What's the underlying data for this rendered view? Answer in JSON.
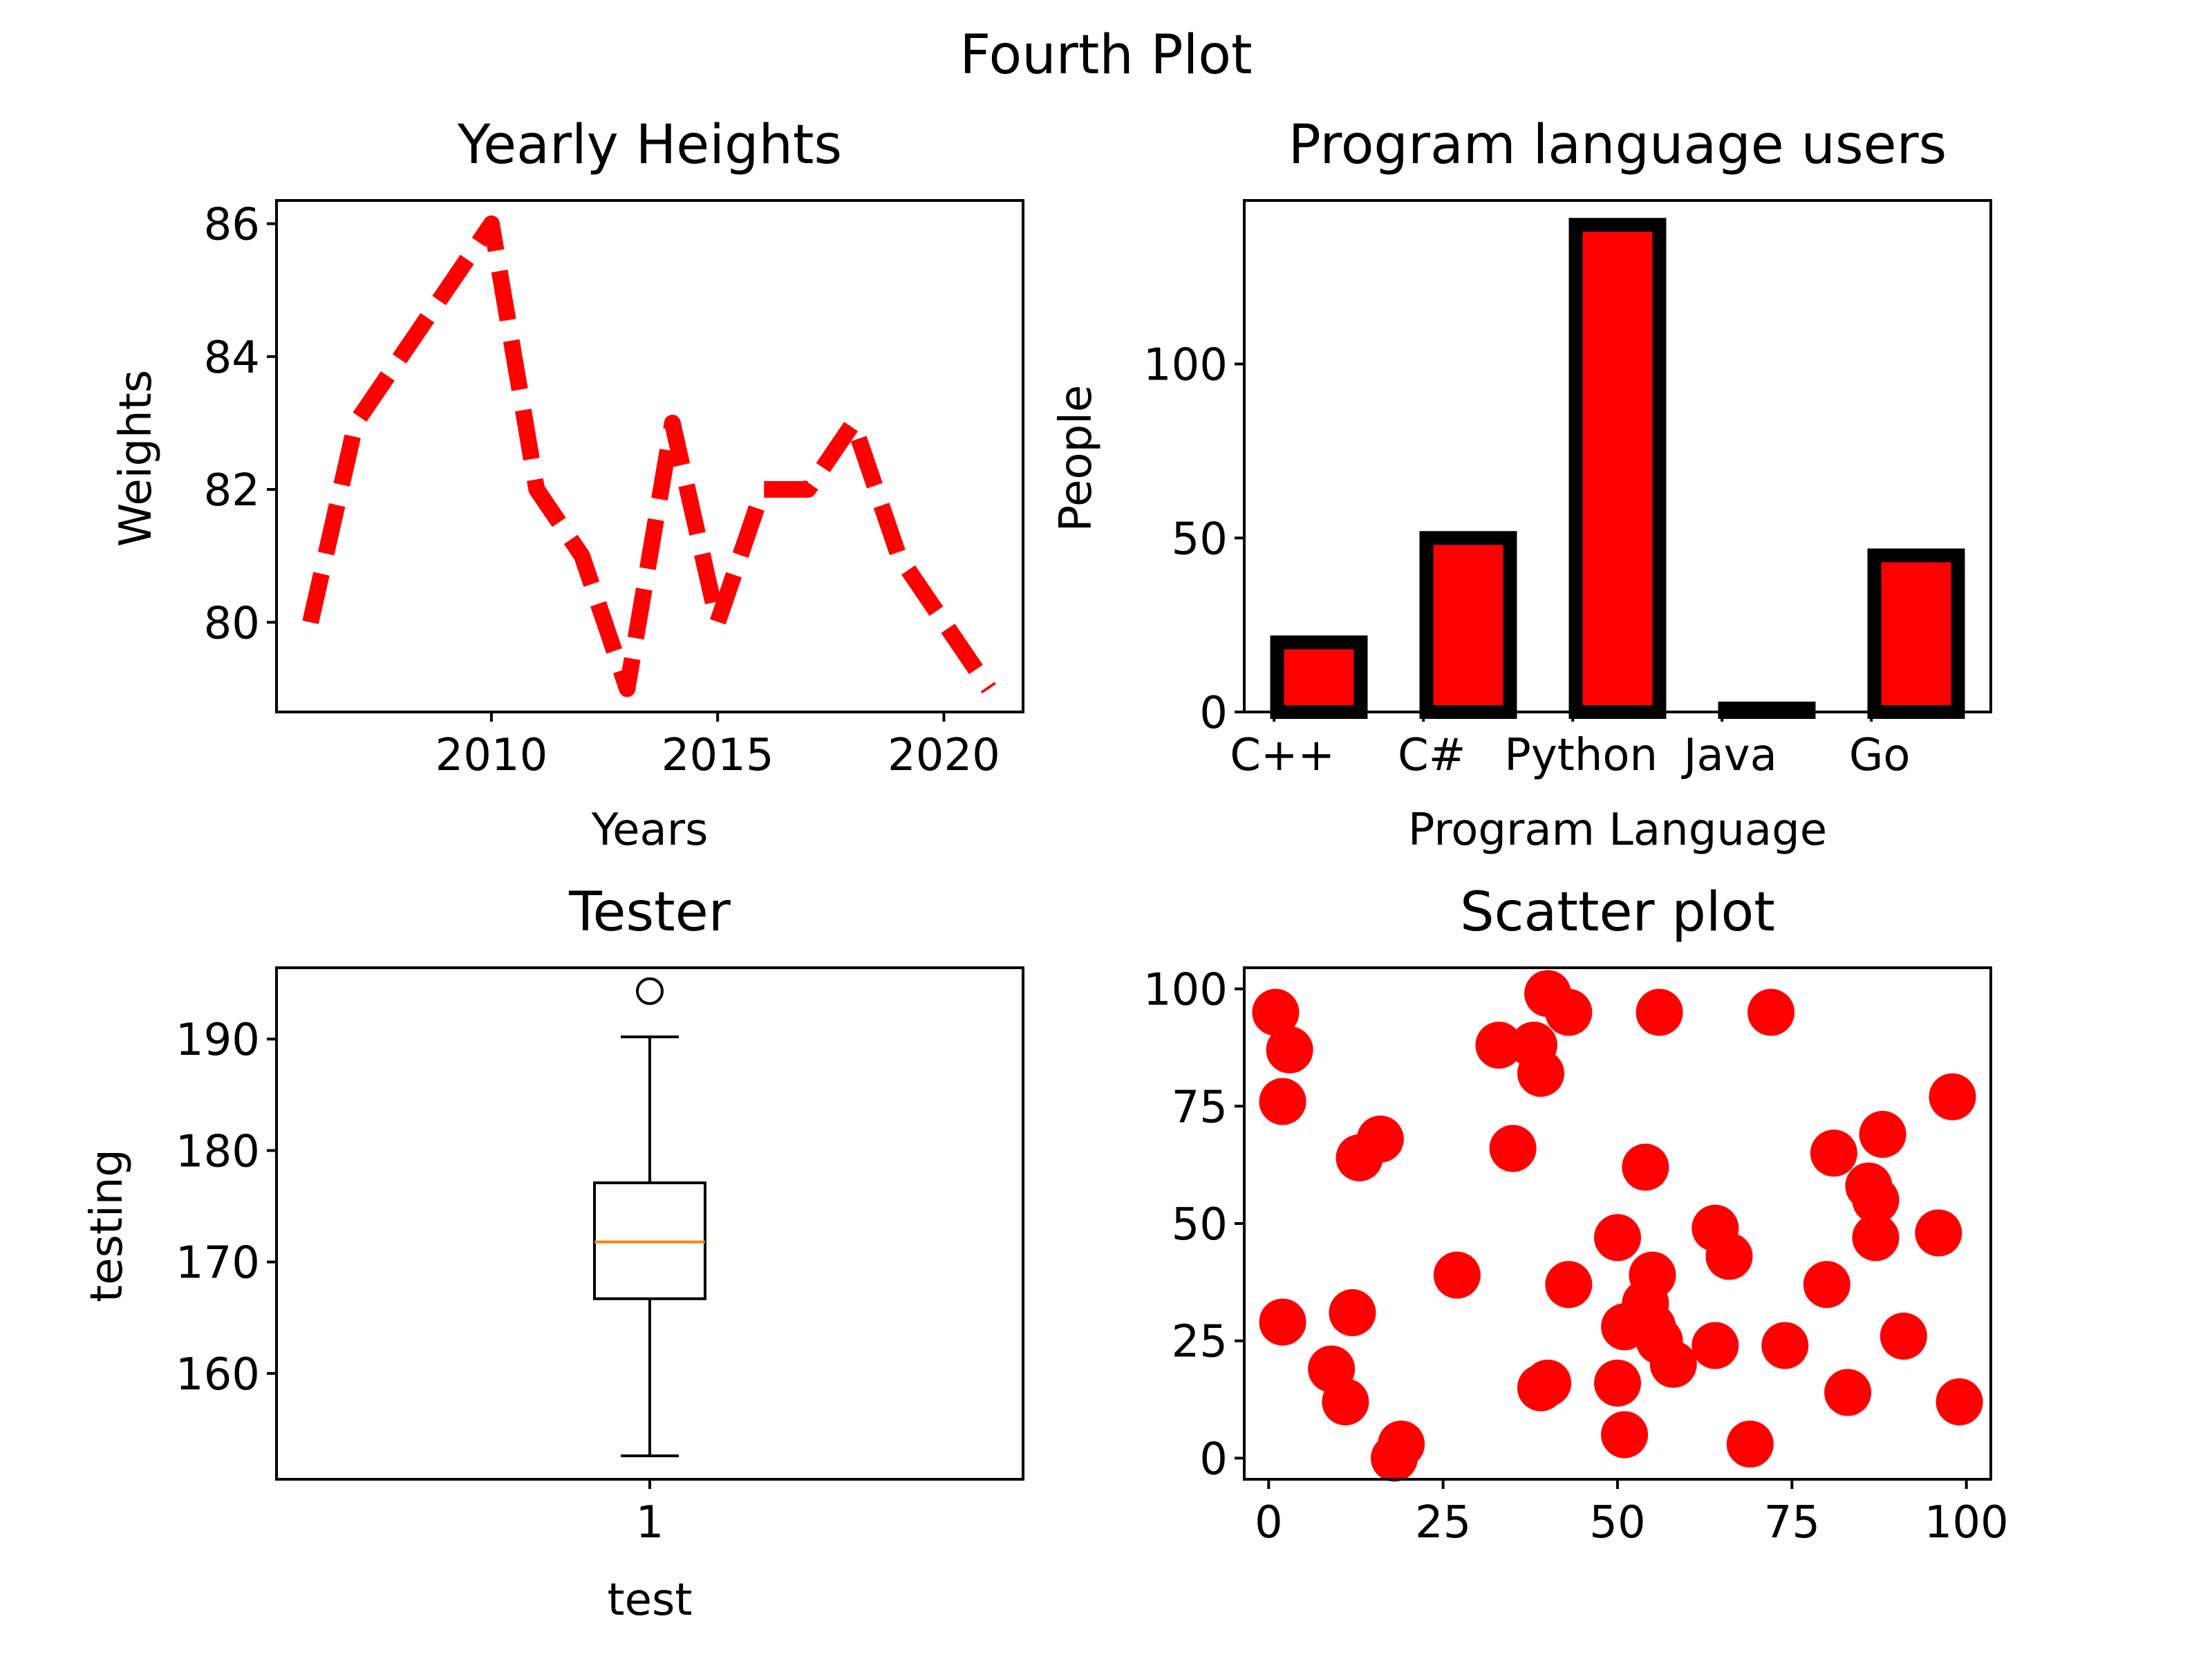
{
  "figure": {
    "suptitle": "Fourth Plot"
  },
  "chart_data": [
    {
      "type": "line",
      "title": "Yearly Heights",
      "xlabel": "Years",
      "ylabel": "Weights",
      "x": [
        2006,
        2007,
        2008,
        2009,
        2010,
        2011,
        2012,
        2013,
        2014,
        2015,
        2016,
        2017,
        2018,
        2019,
        2020,
        2021
      ],
      "series": [
        {
          "values": [
            80,
            83,
            84,
            85,
            86,
            82,
            81,
            79,
            83,
            80,
            82,
            82,
            83,
            81,
            80,
            79
          ]
        }
      ],
      "xlim": [
        2005.25,
        2021.75
      ],
      "ylim": [
        78.65,
        86.35
      ],
      "xticks": [
        2010,
        2015,
        2020
      ],
      "yticks": [
        80,
        82,
        84,
        86
      ],
      "line_style": "dashed",
      "color": "#ff0000",
      "grid": false
    },
    {
      "type": "bar",
      "title": "Program language users",
      "xlabel": "Program Language",
      "ylabel": "People",
      "categories": [
        "C++",
        "C#",
        "Python",
        "Java",
        "Go"
      ],
      "values": [
        20,
        50,
        140,
        1,
        45
      ],
      "ylim": [
        0,
        147
      ],
      "yticks": [
        0,
        50,
        100
      ],
      "bar_color": "#ff0000",
      "edge_color": "#000000",
      "grid": false
    },
    {
      "type": "box",
      "title": "Tester",
      "xlabel": "test",
      "ylabel": "testing",
      "categories": [
        "1"
      ],
      "box": {
        "whisker_low": 152.6,
        "q1": 166.7,
        "median": 171.8,
        "q3": 177.1,
        "whisker_high": 190.2,
        "outliers": [
          194.3
        ]
      },
      "ylim": [
        150.5,
        196.4
      ],
      "yticks": [
        160,
        170,
        180,
        190
      ],
      "median_color": "#ff7f0e",
      "grid": false
    },
    {
      "type": "scatter",
      "title": "Scatter plot",
      "xlabel": "",
      "ylabel": "",
      "points": [
        [
          1,
          95
        ],
        [
          3,
          87
        ],
        [
          2,
          76
        ],
        [
          2,
          29
        ],
        [
          9,
          19
        ],
        [
          11,
          12
        ],
        [
          12,
          31
        ],
        [
          13,
          64
        ],
        [
          16,
          68
        ],
        [
          18,
          0
        ],
        [
          19,
          3
        ],
        [
          27,
          39
        ],
        [
          33,
          88
        ],
        [
          35,
          66
        ],
        [
          38,
          88
        ],
        [
          39,
          82
        ],
        [
          40,
          99
        ],
        [
          43,
          95
        ],
        [
          39,
          15
        ],
        [
          40,
          16
        ],
        [
          43,
          37
        ],
        [
          50,
          47
        ],
        [
          51,
          28
        ],
        [
          50,
          16
        ],
        [
          51,
          5
        ],
        [
          54,
          33
        ],
        [
          55,
          39
        ],
        [
          54,
          62
        ],
        [
          55,
          28
        ],
        [
          56,
          25
        ],
        [
          58,
          20
        ],
        [
          56,
          95
        ],
        [
          64,
          49
        ],
        [
          66,
          43
        ],
        [
          64,
          24
        ],
        [
          69,
          3
        ],
        [
          72,
          95
        ],
        [
          74,
          24
        ],
        [
          80,
          37
        ],
        [
          81,
          65
        ],
        [
          83,
          14
        ],
        [
          86,
          58
        ],
        [
          87,
          55
        ],
        [
          87,
          47
        ],
        [
          88,
          69
        ],
        [
          91,
          26
        ],
        [
          96,
          48
        ],
        [
          98,
          77
        ],
        [
          99,
          12
        ]
      ],
      "xlim": [
        -3.5,
        103.5
      ],
      "ylim": [
        -4.5,
        104.5
      ],
      "xticks": [
        0,
        25,
        50,
        75,
        100
      ],
      "yticks": [
        0,
        25,
        50,
        75,
        100
      ],
      "color": "#ff0000",
      "grid": false
    }
  ]
}
